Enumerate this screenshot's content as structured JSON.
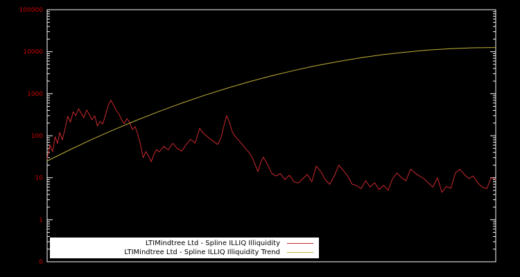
{
  "background_color": "#000000",
  "axis": {
    "border_color": "#ffffff",
    "tick_label_color": "#cc0000",
    "tick_labels": [
      "0",
      "1",
      "10",
      "100",
      "1000",
      "10000",
      "100000"
    ],
    "tick_values": [
      0.1,
      1,
      10,
      100,
      1000,
      10000,
      100000
    ]
  },
  "legend": {
    "background": "#ffffff",
    "text_color": "#000000",
    "items": [
      {
        "label": "LTIMindtree Ltd - Spline ILLIQ Illiquidity",
        "color": "#cd2a2e"
      },
      {
        "label": "LTIMindtree Ltd - Spline ILLIQ Illiquidity Trend",
        "color": "#c3b23a"
      }
    ]
  },
  "chart_data": {
    "type": "line",
    "title": "",
    "xlabel": "",
    "ylabel": "",
    "yscale": "log",
    "ylim": [
      0.1,
      100000
    ],
    "x_range_pct": [
      0,
      100
    ],
    "grid": false,
    "legend_position": "bottom-center",
    "series": [
      {
        "name": "LTIMindtree Ltd - Spline ILLIQ Illiquidity",
        "color": "#cd2a2e",
        "points": [
          [
            0,
            28
          ],
          [
            0.6,
            60
          ],
          [
            1.2,
            42
          ],
          [
            1.8,
            95
          ],
          [
            2.3,
            65
          ],
          [
            2.8,
            120
          ],
          [
            3.4,
            80
          ],
          [
            4,
            150
          ],
          [
            4.6,
            290
          ],
          [
            5.2,
            210
          ],
          [
            5.8,
            370
          ],
          [
            6.4,
            300
          ],
          [
            7,
            440
          ],
          [
            7.6,
            340
          ],
          [
            8.2,
            270
          ],
          [
            8.8,
            410
          ],
          [
            9.4,
            320
          ],
          [
            10,
            240
          ],
          [
            10.6,
            300
          ],
          [
            11.2,
            170
          ],
          [
            11.8,
            220
          ],
          [
            12.4,
            190
          ],
          [
            13,
            310
          ],
          [
            13.6,
            520
          ],
          [
            14.2,
            700
          ],
          [
            14.8,
            540
          ],
          [
            15.4,
            400
          ],
          [
            16,
            330
          ],
          [
            16.6,
            240
          ],
          [
            17.2,
            195
          ],
          [
            17.8,
            255
          ],
          [
            18.4,
            210
          ],
          [
            19,
            140
          ],
          [
            19.6,
            165
          ],
          [
            20.2,
            110
          ],
          [
            20.8,
            62
          ],
          [
            21.4,
            30
          ],
          [
            22,
            42
          ],
          [
            22.6,
            33
          ],
          [
            23.2,
            24
          ],
          [
            23.8,
            36
          ],
          [
            24.4,
            47
          ],
          [
            25,
            41
          ],
          [
            26,
            56
          ],
          [
            27,
            46
          ],
          [
            28,
            66
          ],
          [
            29,
            50
          ],
          [
            30,
            43
          ],
          [
            31,
            62
          ],
          [
            32,
            82
          ],
          [
            33,
            66
          ],
          [
            34,
            150
          ],
          [
            34.8,
            115
          ],
          [
            35.6,
            98
          ],
          [
            36.4,
            82
          ],
          [
            37.2,
            72
          ],
          [
            38,
            62
          ],
          [
            38.8,
            92
          ],
          [
            39.4,
            170
          ],
          [
            40,
            300
          ],
          [
            40.6,
            215
          ],
          [
            41.2,
            130
          ],
          [
            41.8,
            100
          ],
          [
            42.6,
            80
          ],
          [
            43.4,
            64
          ],
          [
            44.2,
            50
          ],
          [
            45,
            40
          ],
          [
            45.8,
            29
          ],
          [
            46.4,
            20
          ],
          [
            47,
            14
          ],
          [
            47.6,
            23
          ],
          [
            48.2,
            31
          ],
          [
            48.8,
            24
          ],
          [
            49.4,
            18
          ],
          [
            50,
            13
          ],
          [
            51,
            11
          ],
          [
            52,
            12.5
          ],
          [
            53,
            9
          ],
          [
            54,
            11.5
          ],
          [
            55,
            8
          ],
          [
            56,
            7.5
          ],
          [
            57,
            9.5
          ],
          [
            58,
            12
          ],
          [
            59,
            8
          ],
          [
            60,
            19
          ],
          [
            61,
            14
          ],
          [
            62,
            9
          ],
          [
            63,
            7
          ],
          [
            64,
            11
          ],
          [
            65,
            20
          ],
          [
            66,
            15
          ],
          [
            67,
            11
          ],
          [
            68,
            7
          ],
          [
            69,
            6.5
          ],
          [
            70,
            5.5
          ],
          [
            71,
            8.5
          ],
          [
            72,
            6
          ],
          [
            73,
            7.6
          ],
          [
            74,
            5.2
          ],
          [
            75,
            6.6
          ],
          [
            76,
            5
          ],
          [
            77,
            9.5
          ],
          [
            78,
            13
          ],
          [
            79,
            10
          ],
          [
            80,
            8.5
          ],
          [
            81,
            16
          ],
          [
            82,
            13
          ],
          [
            83,
            11
          ],
          [
            84,
            9.5
          ],
          [
            85,
            7.5
          ],
          [
            86,
            6
          ],
          [
            87,
            10
          ],
          [
            88,
            4.5
          ],
          [
            89,
            6.2
          ],
          [
            90,
            5.6
          ],
          [
            91,
            13
          ],
          [
            92,
            16
          ],
          [
            93,
            12
          ],
          [
            94,
            9.6
          ],
          [
            95,
            11
          ],
          [
            96,
            7.5
          ],
          [
            97,
            6
          ],
          [
            98,
            5.5
          ],
          [
            99,
            10
          ],
          [
            100,
            9
          ]
        ]
      },
      {
        "name": "LTIMindtree Ltd - Spline ILLIQ Illiquidity Trend",
        "color": "#c3b23a",
        "points": [
          [
            0,
            25
          ],
          [
            5,
            46
          ],
          [
            10,
            82
          ],
          [
            15,
            141
          ],
          [
            20,
            235
          ],
          [
            25,
            381
          ],
          [
            30,
            598
          ],
          [
            35,
            910
          ],
          [
            40,
            1343
          ],
          [
            45,
            1920
          ],
          [
            50,
            2661
          ],
          [
            55,
            3575
          ],
          [
            60,
            4656
          ],
          [
            65,
            5877
          ],
          [
            70,
            7194
          ],
          [
            75,
            8535
          ],
          [
            80,
            9817
          ],
          [
            85,
            10949
          ],
          [
            90,
            11830
          ],
          [
            95,
            12388
          ],
          [
            100,
            12589
          ]
        ]
      }
    ]
  }
}
